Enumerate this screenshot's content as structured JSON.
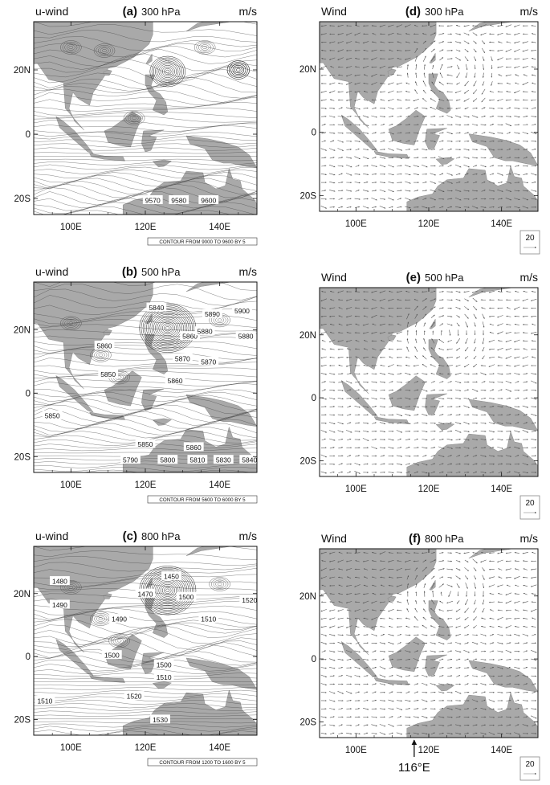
{
  "chart_data": [
    {
      "type": "contour",
      "id": "a",
      "label": "(a)",
      "level": "300 hPa",
      "left_title": "u-wind",
      "right_title": "m/s",
      "lon_ticks": [
        "100E",
        "120E",
        "140E"
      ],
      "lat_ticks": [
        "20N",
        "0",
        "20S"
      ],
      "xlim": [
        90,
        150
      ],
      "ylim": [
        -25,
        35
      ],
      "contour_labels": [
        "9570",
        "9580",
        "9600"
      ],
      "contour_label_positions": [
        [
          122,
          -20.5
        ],
        [
          129,
          -20.5
        ],
        [
          137,
          -20.5
        ]
      ],
      "info": "CONTOUR FROM 9000 TO 9600 BY 5",
      "vortex": [
        126,
        19.5
      ]
    },
    {
      "type": "vector",
      "id": "d",
      "label": "(d)",
      "level": "300 hPa",
      "left_title": "Wind",
      "right_title": "m/s",
      "lon_ticks": [
        "100E",
        "120E",
        "140E"
      ],
      "lat_ticks": [
        "20N",
        "0",
        "20S"
      ],
      "xlim": [
        90,
        150
      ],
      "ylim": [
        -25,
        35
      ],
      "ref_vector": "20",
      "vortex": [
        126,
        19.5
      ]
    },
    {
      "type": "contour",
      "id": "b",
      "label": "(b)",
      "level": "500 hPa",
      "left_title": "u-wind",
      "right_title": "m/s",
      "lon_ticks": [
        "100E",
        "120E",
        "140E"
      ],
      "lat_ticks": [
        "20N",
        "0",
        "20S"
      ],
      "xlim": [
        90,
        150
      ],
      "ylim": [
        -25,
        35
      ],
      "contour_labels": [
        "5840",
        "5890",
        "5900",
        "5860",
        "5880",
        "5880",
        "5860",
        "5870",
        "5870",
        "5850",
        "5860",
        "5850",
        "5850",
        "5860",
        "5790",
        "5800",
        "5810",
        "5830",
        "5840"
      ],
      "contour_label_positions": [
        [
          123,
          27
        ],
        [
          138,
          25
        ],
        [
          146,
          26
        ],
        [
          132,
          18
        ],
        [
          136,
          19.5
        ],
        [
          147,
          18
        ],
        [
          109,
          15
        ],
        [
          130,
          11
        ],
        [
          137,
          10
        ],
        [
          110,
          6
        ],
        [
          128,
          4
        ],
        [
          95,
          -7
        ],
        [
          120,
          -16
        ],
        [
          133,
          -17
        ],
        [
          116,
          -21
        ],
        [
          126,
          -21
        ],
        [
          134,
          -21
        ],
        [
          141,
          -21
        ],
        [
          148,
          -21
        ]
      ],
      "info": "CONTOUR FROM 5600 TO 6000 BY 5",
      "vortex": [
        126,
        20.5
      ]
    },
    {
      "type": "vector",
      "id": "e",
      "label": "(e)",
      "level": "500 hPa",
      "left_title": "Wind",
      "right_title": "m/s",
      "lon_ticks": [
        "100E",
        "120E",
        "140E"
      ],
      "lat_ticks": [
        "20N",
        "0",
        "20S"
      ],
      "xlim": [
        90,
        150
      ],
      "ylim": [
        -25,
        35
      ],
      "ref_vector": "20",
      "vortex": [
        125,
        20.5
      ]
    },
    {
      "type": "contour",
      "id": "c",
      "label": "(c)",
      "level": "800 hPa",
      "left_title": "u-wind",
      "right_title": "m/s",
      "lon_ticks": [
        "100E",
        "120E",
        "140E"
      ],
      "lat_ticks": [
        "20N",
        "0",
        "20S"
      ],
      "xlim": [
        90,
        150
      ],
      "ylim": [
        -25,
        35
      ],
      "contour_labels": [
        "1450",
        "1470",
        "1480",
        "1490",
        "1490",
        "1500",
        "1510",
        "1520",
        "1500",
        "1500",
        "1510",
        "1510",
        "1520",
        "1530"
      ],
      "contour_label_positions": [
        [
          127,
          25.5
        ],
        [
          120,
          20
        ],
        [
          97,
          24
        ],
        [
          97,
          16.5
        ],
        [
          113,
          12
        ],
        [
          131,
          19
        ],
        [
          137,
          12
        ],
        [
          148,
          18
        ],
        [
          111,
          0.5
        ],
        [
          125,
          -2.5
        ],
        [
          125,
          -6.5
        ],
        [
          93,
          -14
        ],
        [
          117,
          -12.5
        ],
        [
          124,
          -20
        ]
      ],
      "info": "CONTOUR FROM 1200 TO 1600 BY 5",
      "vortex": [
        126,
        21
      ]
    },
    {
      "type": "vector",
      "id": "f",
      "label": "(f)",
      "level": "800 hPa",
      "left_title": "Wind",
      "right_title": "m/s",
      "lon_ticks": [
        "100E",
        "120E",
        "140E"
      ],
      "lat_ticks": [
        "20N",
        "0",
        "20S"
      ],
      "xlim": [
        90,
        150
      ],
      "ylim": [
        -25,
        35
      ],
      "ref_vector": "20",
      "vortex": [
        125,
        21
      ],
      "annotation": "116°E",
      "annotation_lon": 116
    }
  ]
}
